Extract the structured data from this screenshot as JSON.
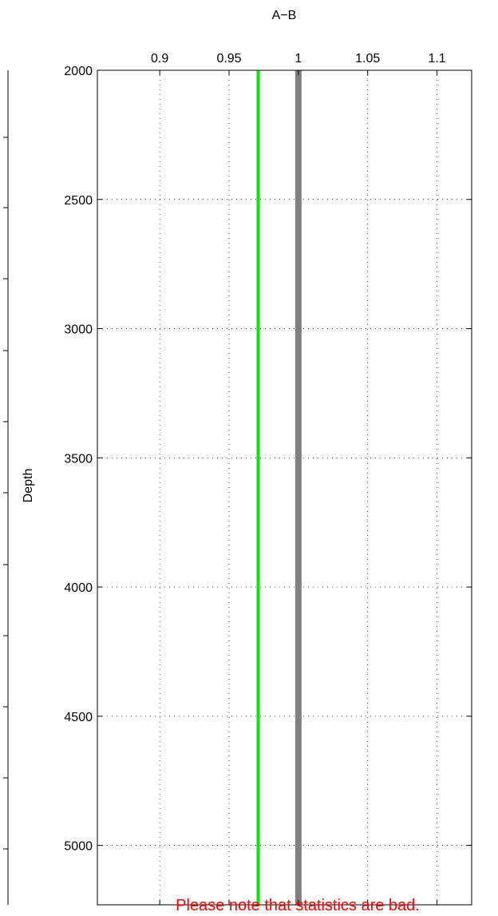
{
  "chart_data": {
    "type": "line",
    "title": "A−B",
    "xlabel": "",
    "ylabel": "Depth",
    "xlim": [
      0.855,
      1.125
    ],
    "ylim": [
      2000,
      5230
    ],
    "y_reversed": true,
    "x_axis_position": "top",
    "grid": true,
    "x_ticks": [
      0.9,
      0.95,
      1,
      1.05,
      1.1
    ],
    "x_tick_labels": [
      "0.9",
      "0.95",
      "1",
      "1.05",
      "1.1"
    ],
    "y_ticks": [
      2000,
      2500,
      3000,
      3500,
      4000,
      4500,
      5000
    ],
    "y_tick_labels": [
      "2000",
      "2500",
      "3000",
      "3500",
      "4000",
      "4500",
      "5000"
    ],
    "series": [
      {
        "x": [
          0.971,
          0.971
        ],
        "y": [
          2000,
          5230
        ],
        "color": "#00ee00"
      },
      {
        "x": [
          1.0,
          1.0
        ],
        "y": [
          2000,
          5230
        ],
        "color": "#808080"
      }
    ],
    "annotation": "Please note that statistics are bad.",
    "annotation_color": "#ff0000"
  }
}
